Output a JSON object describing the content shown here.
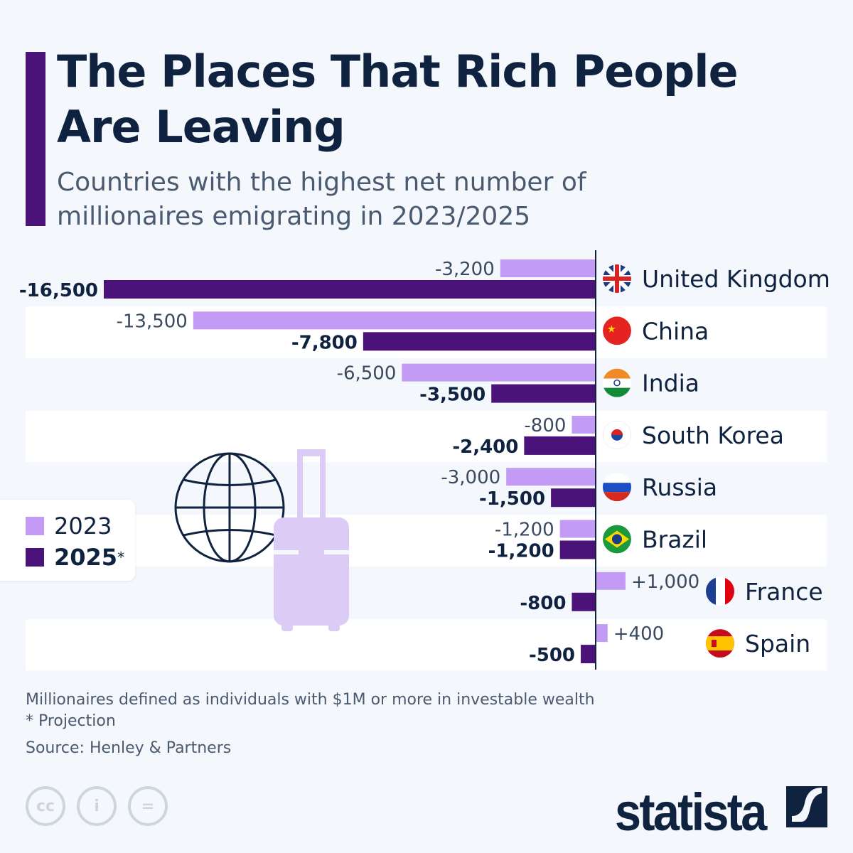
{
  "header": {
    "title": "The Places That Rich People Are Leaving",
    "subtitle": "Countries with the highest net number of millionaires emigrating in 2023/2025"
  },
  "legend": {
    "items": [
      {
        "label": "2023",
        "color": "#c39bf5"
      },
      {
        "label": "2025",
        "suffix": "*",
        "color": "#4b137a"
      }
    ]
  },
  "chart_data": {
    "type": "bar",
    "orientation": "horizontal",
    "categories": [
      "United Kingdom",
      "China",
      "India",
      "South Korea",
      "Russia",
      "Brazil",
      "France",
      "Spain"
    ],
    "series": [
      {
        "name": "2023",
        "color": "#c39bf5",
        "values": [
          -3200,
          -13500,
          -6500,
          -800,
          -3000,
          -1200,
          1000,
          400
        ],
        "labels": [
          "-3,200",
          "-13,500",
          "-6,500",
          "-800",
          "-3,000",
          "-1,200",
          "+1,000",
          "+400"
        ]
      },
      {
        "name": "2025*",
        "color": "#4b137a",
        "values": [
          -16500,
          -7800,
          -3500,
          -2400,
          -1500,
          -1200,
          -800,
          -500
        ],
        "labels": [
          "-16,500",
          "-7,800",
          "-3,500",
          "-2,400",
          "-1,500",
          "-1,200",
          "-800",
          "-500"
        ]
      }
    ],
    "flags": [
      "uk-flag",
      "china-flag",
      "india-flag",
      "south-korea-flag",
      "russia-flag",
      "brazil-flag",
      "france-flag",
      "spain-flag"
    ],
    "xlim": [
      -16500,
      1000
    ]
  },
  "footer": {
    "note": "Millionaires defined as individuals with $1M or more in investable wealth",
    "projection": "* Projection",
    "source": "Source: Henley & Partners",
    "license_icons": [
      "cc",
      "i",
      "="
    ],
    "brand": "statista"
  }
}
